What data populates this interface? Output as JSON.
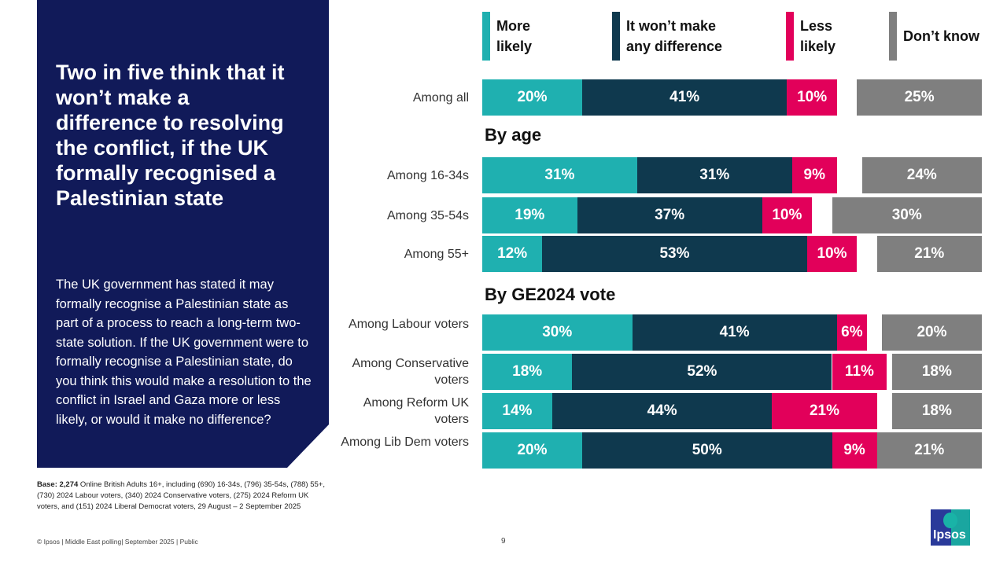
{
  "panel": {
    "headline": "Two in five think that it won’t make a difference to resolving the conflict, if the UK formally recognised a Palestinian state",
    "body": "The UK government has stated it may formally recognise a Palestinian state as part of a process to reach a long-term two-state solution. If the UK government were to formally recognise a Palestinian state, do you think this would make a resolution to the conflict in Israel and Gaza more or less likely, or would it make no difference?"
  },
  "base": {
    "label": "Base: 2,274",
    "text": " Online British Adults 16+, including (690) 16-34s, (796) 35-54s, (788) 55+, (730) 2024 Labour voters, (340) 2024 Conservative voters, (275) 2024 Reform UK voters, and (151) 2024 Liberal Democrat voters, 29 August – 2 September 2025"
  },
  "footer": "© Ipsos | Middle East polling| September 2025 | Public",
  "page_number": "9",
  "logo": "Ipsos",
  "chart_data": {
    "type": "bar",
    "stacked": true,
    "orientation": "horizontal",
    "series": [
      {
        "name": "More likely",
        "color": "#1fb0b0"
      },
      {
        "name": "It won’t make any difference",
        "color": "#0f394e"
      },
      {
        "name": "Less likely",
        "color": "#e2005a"
      },
      {
        "name": "Don’t know",
        "color": "#7f7f7f"
      }
    ],
    "sections": [
      "By age",
      "By GE2024 vote"
    ],
    "rows": [
      {
        "label": "Among all",
        "values": [
          20,
          41,
          10,
          25
        ]
      },
      {
        "section": "By age",
        "label": "Among 16-34s",
        "values": [
          31,
          31,
          9,
          24
        ]
      },
      {
        "label": "Among 35-54s",
        "values": [
          19,
          37,
          10,
          30
        ]
      },
      {
        "label": "Among 55+",
        "values": [
          12,
          53,
          10,
          21
        ]
      },
      {
        "section": "By GE2024 vote",
        "label": "Among Labour voters",
        "values": [
          30,
          41,
          6,
          20
        ]
      },
      {
        "label": "Among Conservative voters",
        "values": [
          18,
          52,
          11,
          18
        ]
      },
      {
        "label": "Among Reform UK voters",
        "values": [
          14,
          44,
          21,
          18
        ]
      },
      {
        "label": "Among Lib Dem voters",
        "values": [
          20,
          50,
          9,
          21
        ]
      }
    ]
  }
}
